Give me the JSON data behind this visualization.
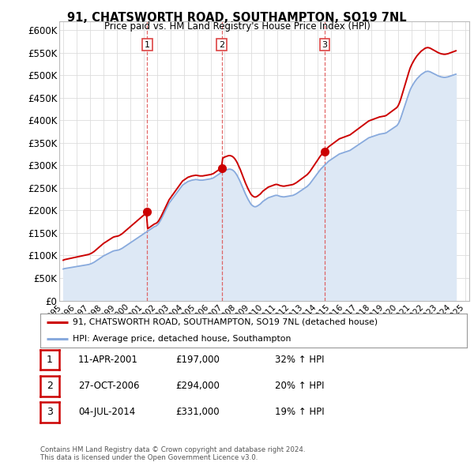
{
  "title": "91, CHATSWORTH ROAD, SOUTHAMPTON, SO19 7NL",
  "subtitle": "Price paid vs. HM Land Registry's House Price Index (HPI)",
  "background_color": "#ffffff",
  "plot_bg_color": "#ffffff",
  "grid_color": "#dddddd",
  "sale_color": "#cc0000",
  "hpi_color": "#88aadd",
  "hpi_fill_color": "#dde8f5",
  "dashed_line_color": "#dd4444",
  "ylim": [
    0,
    620000
  ],
  "yticks": [
    0,
    50000,
    100000,
    150000,
    200000,
    250000,
    300000,
    350000,
    400000,
    450000,
    500000,
    550000,
    600000
  ],
  "ytick_labels": [
    "£0",
    "£50K",
    "£100K",
    "£150K",
    "£200K",
    "£250K",
    "£300K",
    "£350K",
    "£400K",
    "£450K",
    "£500K",
    "£550K",
    "£600K"
  ],
  "transactions": [
    {
      "date_num": 2001.27,
      "price": 197000,
      "label": "1"
    },
    {
      "date_num": 2006.82,
      "price": 294000,
      "label": "2"
    },
    {
      "date_num": 2014.5,
      "price": 331000,
      "label": "3"
    }
  ],
  "legend_sale_label": "91, CHATSWORTH ROAD, SOUTHAMPTON, SO19 7NL (detached house)",
  "legend_hpi_label": "HPI: Average price, detached house, Southampton",
  "table_rows": [
    {
      "num": "1",
      "date": "11-APR-2001",
      "price": "£197,000",
      "change": "32% ↑ HPI"
    },
    {
      "num": "2",
      "date": "27-OCT-2006",
      "price": "£294,000",
      "change": "20% ↑ HPI"
    },
    {
      "num": "3",
      "date": "04-JUL-2014",
      "price": "£331,000",
      "change": "19% ↑ HPI"
    }
  ],
  "footer": "Contains HM Land Registry data © Crown copyright and database right 2024.\nThis data is licensed under the Open Government Licence v3.0.",
  "hpi_y_raw": [
    70000,
    71000,
    71500,
    72000,
    72500,
    73000,
    73500,
    74000,
    74500,
    75000,
    75500,
    76000,
    76500,
    77000,
    77500,
    78000,
    78500,
    79000,
    79500,
    80000,
    81000,
    82000,
    83500,
    85000,
    87000,
    89000,
    91000,
    93000,
    95000,
    97000,
    99000,
    100500,
    102000,
    103500,
    105000,
    106500,
    108000,
    109500,
    110500,
    111000,
    111500,
    112000,
    113000,
    114500,
    116000,
    118000,
    120000,
    122000,
    124000,
    126000,
    128000,
    130000,
    132000,
    134000,
    136000,
    138000,
    140000,
    142000,
    144000,
    146000,
    148000,
    150000,
    152000,
    154000,
    156000,
    158000,
    160000,
    162000,
    164000,
    165000,
    167000,
    170000,
    175000,
    180000,
    186000,
    192000,
    198000,
    204000,
    210000,
    216000,
    220000,
    224000,
    228000,
    232000,
    236000,
    240000,
    244000,
    248000,
    252000,
    256000,
    258000,
    260000,
    262000,
    264000,
    265000,
    266000,
    267000,
    267500,
    268000,
    268500,
    268000,
    267500,
    267000,
    267000,
    267000,
    267500,
    268000,
    268500,
    269000,
    269500,
    270000,
    271000,
    272000,
    274000,
    276000,
    278000,
    280000,
    282000,
    284000,
    286000,
    288000,
    289000,
    290000,
    291000,
    291500,
    291000,
    290000,
    288000,
    285000,
    281000,
    276000,
    270000,
    264000,
    257000,
    250000,
    243000,
    236000,
    230000,
    224000,
    219000,
    214000,
    211000,
    209000,
    208000,
    208500,
    210000,
    212000,
    214000,
    217000,
    220000,
    222000,
    224000,
    226000,
    228000,
    229000,
    230000,
    231000,
    232000,
    233000,
    233500,
    233000,
    232000,
    231000,
    230500,
    230000,
    230000,
    230500,
    231000,
    231500,
    232000,
    232500,
    233000,
    234000,
    235500,
    237000,
    239000,
    241000,
    243000,
    245000,
    247000,
    249000,
    251000,
    253000,
    256000,
    259000,
    263000,
    267000,
    271000,
    275000,
    279000,
    283000,
    287000,
    291000,
    294000,
    297000,
    300000,
    303000,
    306000,
    309000,
    311000,
    313000,
    315000,
    317000,
    319000,
    321000,
    323000,
    325000,
    326000,
    327000,
    328000,
    329000,
    330000,
    331000,
    332000,
    333000,
    335000,
    337000,
    339000,
    341000,
    343000,
    345000,
    347000,
    349000,
    351000,
    353000,
    355000,
    357000,
    359000,
    361000,
    362000,
    363000,
    364000,
    365000,
    366000,
    367000,
    368000,
    369000,
    369500,
    370000,
    370500,
    371000,
    372000,
    374000,
    376000,
    378000,
    380000,
    382000,
    384000,
    386000,
    388000,
    392000,
    398000,
    406000,
    415000,
    424000,
    433000,
    442000,
    451000,
    460000,
    468000,
    474000,
    479000,
    484000,
    488000,
    492000,
    495000,
    498000,
    501000,
    503000,
    505000,
    507000,
    508000,
    508500,
    508000,
    507000,
    505500,
    504000,
    502500,
    501000,
    499500,
    498000,
    497000,
    496000,
    495500,
    495000,
    495000,
    495500,
    496000,
    497000,
    498000,
    499000,
    500000,
    501000,
    502000
  ],
  "xlim": [
    1994.7,
    2025.3
  ],
  "xticks": [
    1995,
    1996,
    1997,
    1998,
    1999,
    2000,
    2001,
    2002,
    2003,
    2004,
    2005,
    2006,
    2007,
    2008,
    2009,
    2010,
    2011,
    2012,
    2013,
    2014,
    2015,
    2016,
    2017,
    2018,
    2019,
    2020,
    2021,
    2022,
    2023,
    2024,
    2025
  ]
}
